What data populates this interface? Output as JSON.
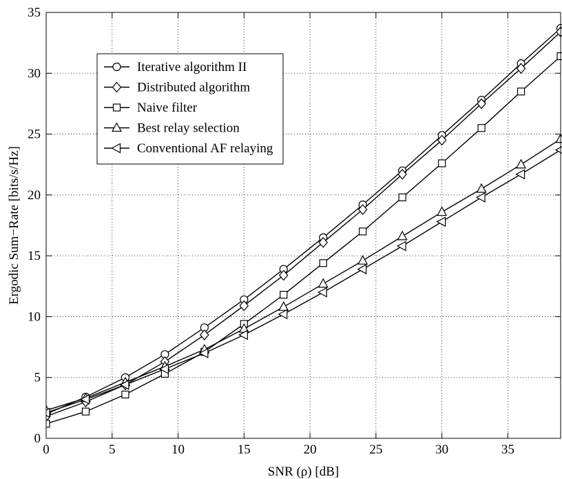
{
  "chart_data": {
    "type": "line",
    "title": "",
    "xlabel": "SNR (ρ) [dB]",
    "ylabel": "Ergodic Sum−Rate [bits/s/Hz]",
    "xlim": [
      0,
      39
    ],
    "ylim": [
      0,
      35
    ],
    "xticks": [
      0,
      5,
      10,
      15,
      20,
      25,
      30,
      35
    ],
    "yticks": [
      0,
      5,
      10,
      15,
      20,
      25,
      30,
      35
    ],
    "grid": true,
    "grid_style": "dotted",
    "legend_position": "top-left",
    "x": [
      0,
      3,
      6,
      9,
      12,
      15,
      18,
      21,
      24,
      27,
      30,
      33,
      36,
      39
    ],
    "series": [
      {
        "name": "Iterative algorithm II",
        "marker": "circle",
        "values": [
          2.0,
          3.4,
          5.0,
          6.9,
          9.1,
          11.4,
          13.9,
          16.5,
          19.2,
          22.0,
          24.9,
          27.8,
          30.8,
          33.7
        ]
      },
      {
        "name": "Distributed algorithm",
        "marker": "diamond",
        "values": [
          1.8,
          3.0,
          4.4,
          6.3,
          8.5,
          10.9,
          13.4,
          16.1,
          18.8,
          21.7,
          24.5,
          27.5,
          30.4,
          33.4
        ]
      },
      {
        "name": "Naive filter",
        "marker": "square",
        "values": [
          1.2,
          2.2,
          3.6,
          5.3,
          7.1,
          9.4,
          11.8,
          14.4,
          17.0,
          19.8,
          22.6,
          25.5,
          28.5,
          31.4
        ]
      },
      {
        "name": "Best relay selection",
        "marker": "triangle-up",
        "values": [
          2.3,
          3.3,
          4.6,
          5.9,
          7.3,
          9.0,
          10.8,
          12.7,
          14.6,
          16.6,
          18.6,
          20.5,
          22.5,
          24.6
        ]
      },
      {
        "name": "Conventional AF relaying",
        "marker": "triangle-left",
        "values": [
          2.1,
          3.2,
          4.4,
          5.7,
          7.0,
          8.5,
          10.2,
          12.0,
          13.9,
          15.8,
          17.8,
          19.8,
          21.7,
          23.7
        ]
      }
    ]
  }
}
